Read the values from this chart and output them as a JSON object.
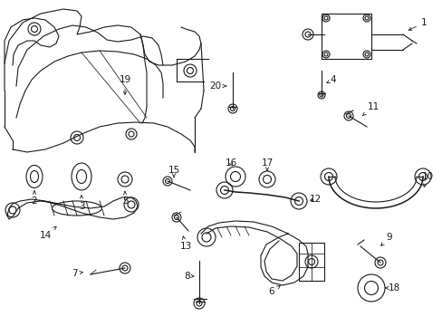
{
  "bg_color": "#ffffff",
  "line_color": "#1a1a1a",
  "text_color": "#1a1a1a",
  "figsize": [
    4.89,
    3.6
  ],
  "dpi": 100,
  "lw": 0.8,
  "fontsize": 7.5
}
